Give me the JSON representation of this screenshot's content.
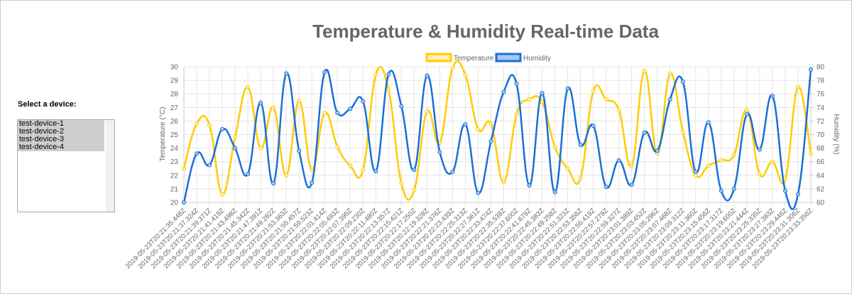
{
  "sidebar": {
    "label": "Select a device:",
    "options": [
      "test-device-1",
      "test-device-2",
      "test-device-3",
      "test-device-4"
    ]
  },
  "chart_data": {
    "type": "line",
    "title": "Temperature & Humidity Real-time Data",
    "y_label": "Temperature (°C)",
    "y2_label": "Humidity (%)",
    "categories": [
      "2019-05-23T20:21:35.448Z",
      "2019-05-23T20:21:37.324Z",
      "2019-05-23T20:21:39.371Z",
      "2019-05-23T20:21:41.419Z",
      "2019-05-23T20:21:43.498Z",
      "2019-05-23T20:21:45.342Z",
      "2019-05-23T20:21:47.391Z",
      "2019-05-23T20:21:49.282Z",
      "2019-05-23T20:21:53.363Z",
      "2019-05-23T20:21:55.457Z",
      "2019-05-23T20:21:59.523Z",
      "2019-05-23T20:22:01.414Z",
      "2019-05-23T20:22:05.493Z",
      "2019-05-23T20:22:07.395Z",
      "2019-05-23T20:22:09.230Z",
      "2019-05-23T20:22:11.480Z",
      "2019-05-23T20:22:13.357Z",
      "2019-05-23T20:22:15.421Z",
      "2019-05-23T20:22:17.250Z",
      "2019-05-23T20:22:19.328Z",
      "2019-05-23T20:22:21.376Z",
      "2019-05-23T20:22:23.439Z",
      "2019-05-23T20:22:25.313Z",
      "2019-05-23T20:22:27.361Z",
      "2019-05-23T20:22:33.474Z",
      "2019-05-23T20:22:35.538Z",
      "2019-05-23T20:22:37.600Z",
      "2019-05-23T20:22:41.679Z",
      "2019-05-23T20:22:45.383Z",
      "2019-05-23T20:22:49.258Z",
      "2019-05-23T20:22:51.323Z",
      "2019-05-23T20:22:53.356Z",
      "2019-05-23T20:22:55.419Z",
      "2019-05-23T20:22:57.279Z",
      "2019-05-23T20:22:59.327Z",
      "2019-05-23T20:23:01.389Z",
      "2019-05-23T20:23:03.452Z",
      "2019-05-23T20:23:05.296Z",
      "2019-05-23T20:23:07.468Z",
      "2019-05-23T20:23:09.312Z",
      "2019-05-23T20:23:11.360Z",
      "2019-05-23T20:23:15.456Z",
      "2019-05-23T20:23:17.317Z",
      "2019-05-23T20:23:19.600Z",
      "2019-05-23T20:23:21.444Z",
      "2019-05-23T20:23:25.335Z",
      "2019-05-23T20:23:27.383Z",
      "2019-05-23T20:23:29.446Z",
      "2019-05-23T20:23:31.306Z",
      "2019-05-23T20:23:33.356Z"
    ],
    "series": [
      {
        "name": "Temperature",
        "color": "#ffcc00",
        "fill": "#fff0b3",
        "axis": "y",
        "values": [
          22.5,
          25.8,
          25.7,
          20.6,
          24.8,
          28.5,
          24.0,
          27,
          22,
          27.5,
          22.4,
          26.6,
          24.1,
          22.7,
          22.4,
          29.4,
          28.3,
          21.4,
          20.9,
          26.7,
          24.4,
          29.9,
          29.4,
          25.4,
          25.8,
          21.5,
          26.5,
          27.6,
          27.4,
          24.1,
          22.5,
          21.8,
          28.2,
          27.6,
          26.8,
          22.7,
          29.7,
          23.6,
          29.5,
          25.2,
          22,
          22.7,
          23.1,
          23.5,
          26.8,
          22.1,
          23,
          21.7,
          28.5,
          23.6
        ]
      },
      {
        "name": "Humidity",
        "color": "#1a6fd8",
        "fill": "#a9c8f0",
        "axis": "y2",
        "values": [
          60,
          67.2,
          65.5,
          70.8,
          68,
          64.2,
          74.7,
          62.8,
          79,
          67.6,
          62.9,
          79.2,
          73.2,
          73.8,
          74.9,
          64.6,
          78.9,
          74.2,
          64.8,
          78.7,
          67.4,
          64.5,
          71.5,
          61.4,
          69,
          76.3,
          77.5,
          62.5,
          76.1,
          61.5,
          76.8,
          68.5,
          71.3,
          62.3,
          66.2,
          62.6,
          70.3,
          67.6,
          75.2,
          77.8,
          64.5,
          71.8,
          61.7,
          62,
          73,
          67.8,
          75.7,
          61.7,
          61.2,
          79.6
        ]
      }
    ],
    "ylim": [
      20,
      30
    ],
    "yticks": [
      20,
      21,
      22,
      23,
      24,
      25,
      26,
      27,
      28,
      29,
      30
    ],
    "y2lim": [
      60,
      80
    ],
    "y2ticks": [
      60,
      62,
      64,
      66,
      68,
      70,
      72,
      74,
      76,
      78,
      80
    ],
    "grid": true,
    "legend": "top"
  }
}
